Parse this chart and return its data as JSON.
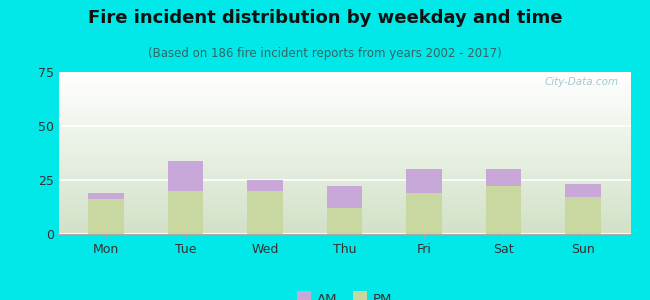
{
  "title": "Fire incident distribution by weekday and time",
  "subtitle": "(Based on 186 fire incident reports from years 2002 - 2017)",
  "categories": [
    "Mon",
    "Tue",
    "Wed",
    "Thu",
    "Fri",
    "Sat",
    "Sun"
  ],
  "pm_values": [
    16,
    20,
    20,
    12,
    19,
    22,
    17
  ],
  "am_values": [
    3,
    14,
    5,
    10,
    11,
    8,
    6
  ],
  "am_color": "#c8a8d8",
  "pm_color": "#c8d8a0",
  "ylim": [
    0,
    75
  ],
  "yticks": [
    0,
    25,
    50,
    75
  ],
  "background_color": "#00e8e8",
  "watermark": "City-Data.com",
  "title_fontsize": 13,
  "subtitle_fontsize": 8.5,
  "bar_width": 0.45
}
